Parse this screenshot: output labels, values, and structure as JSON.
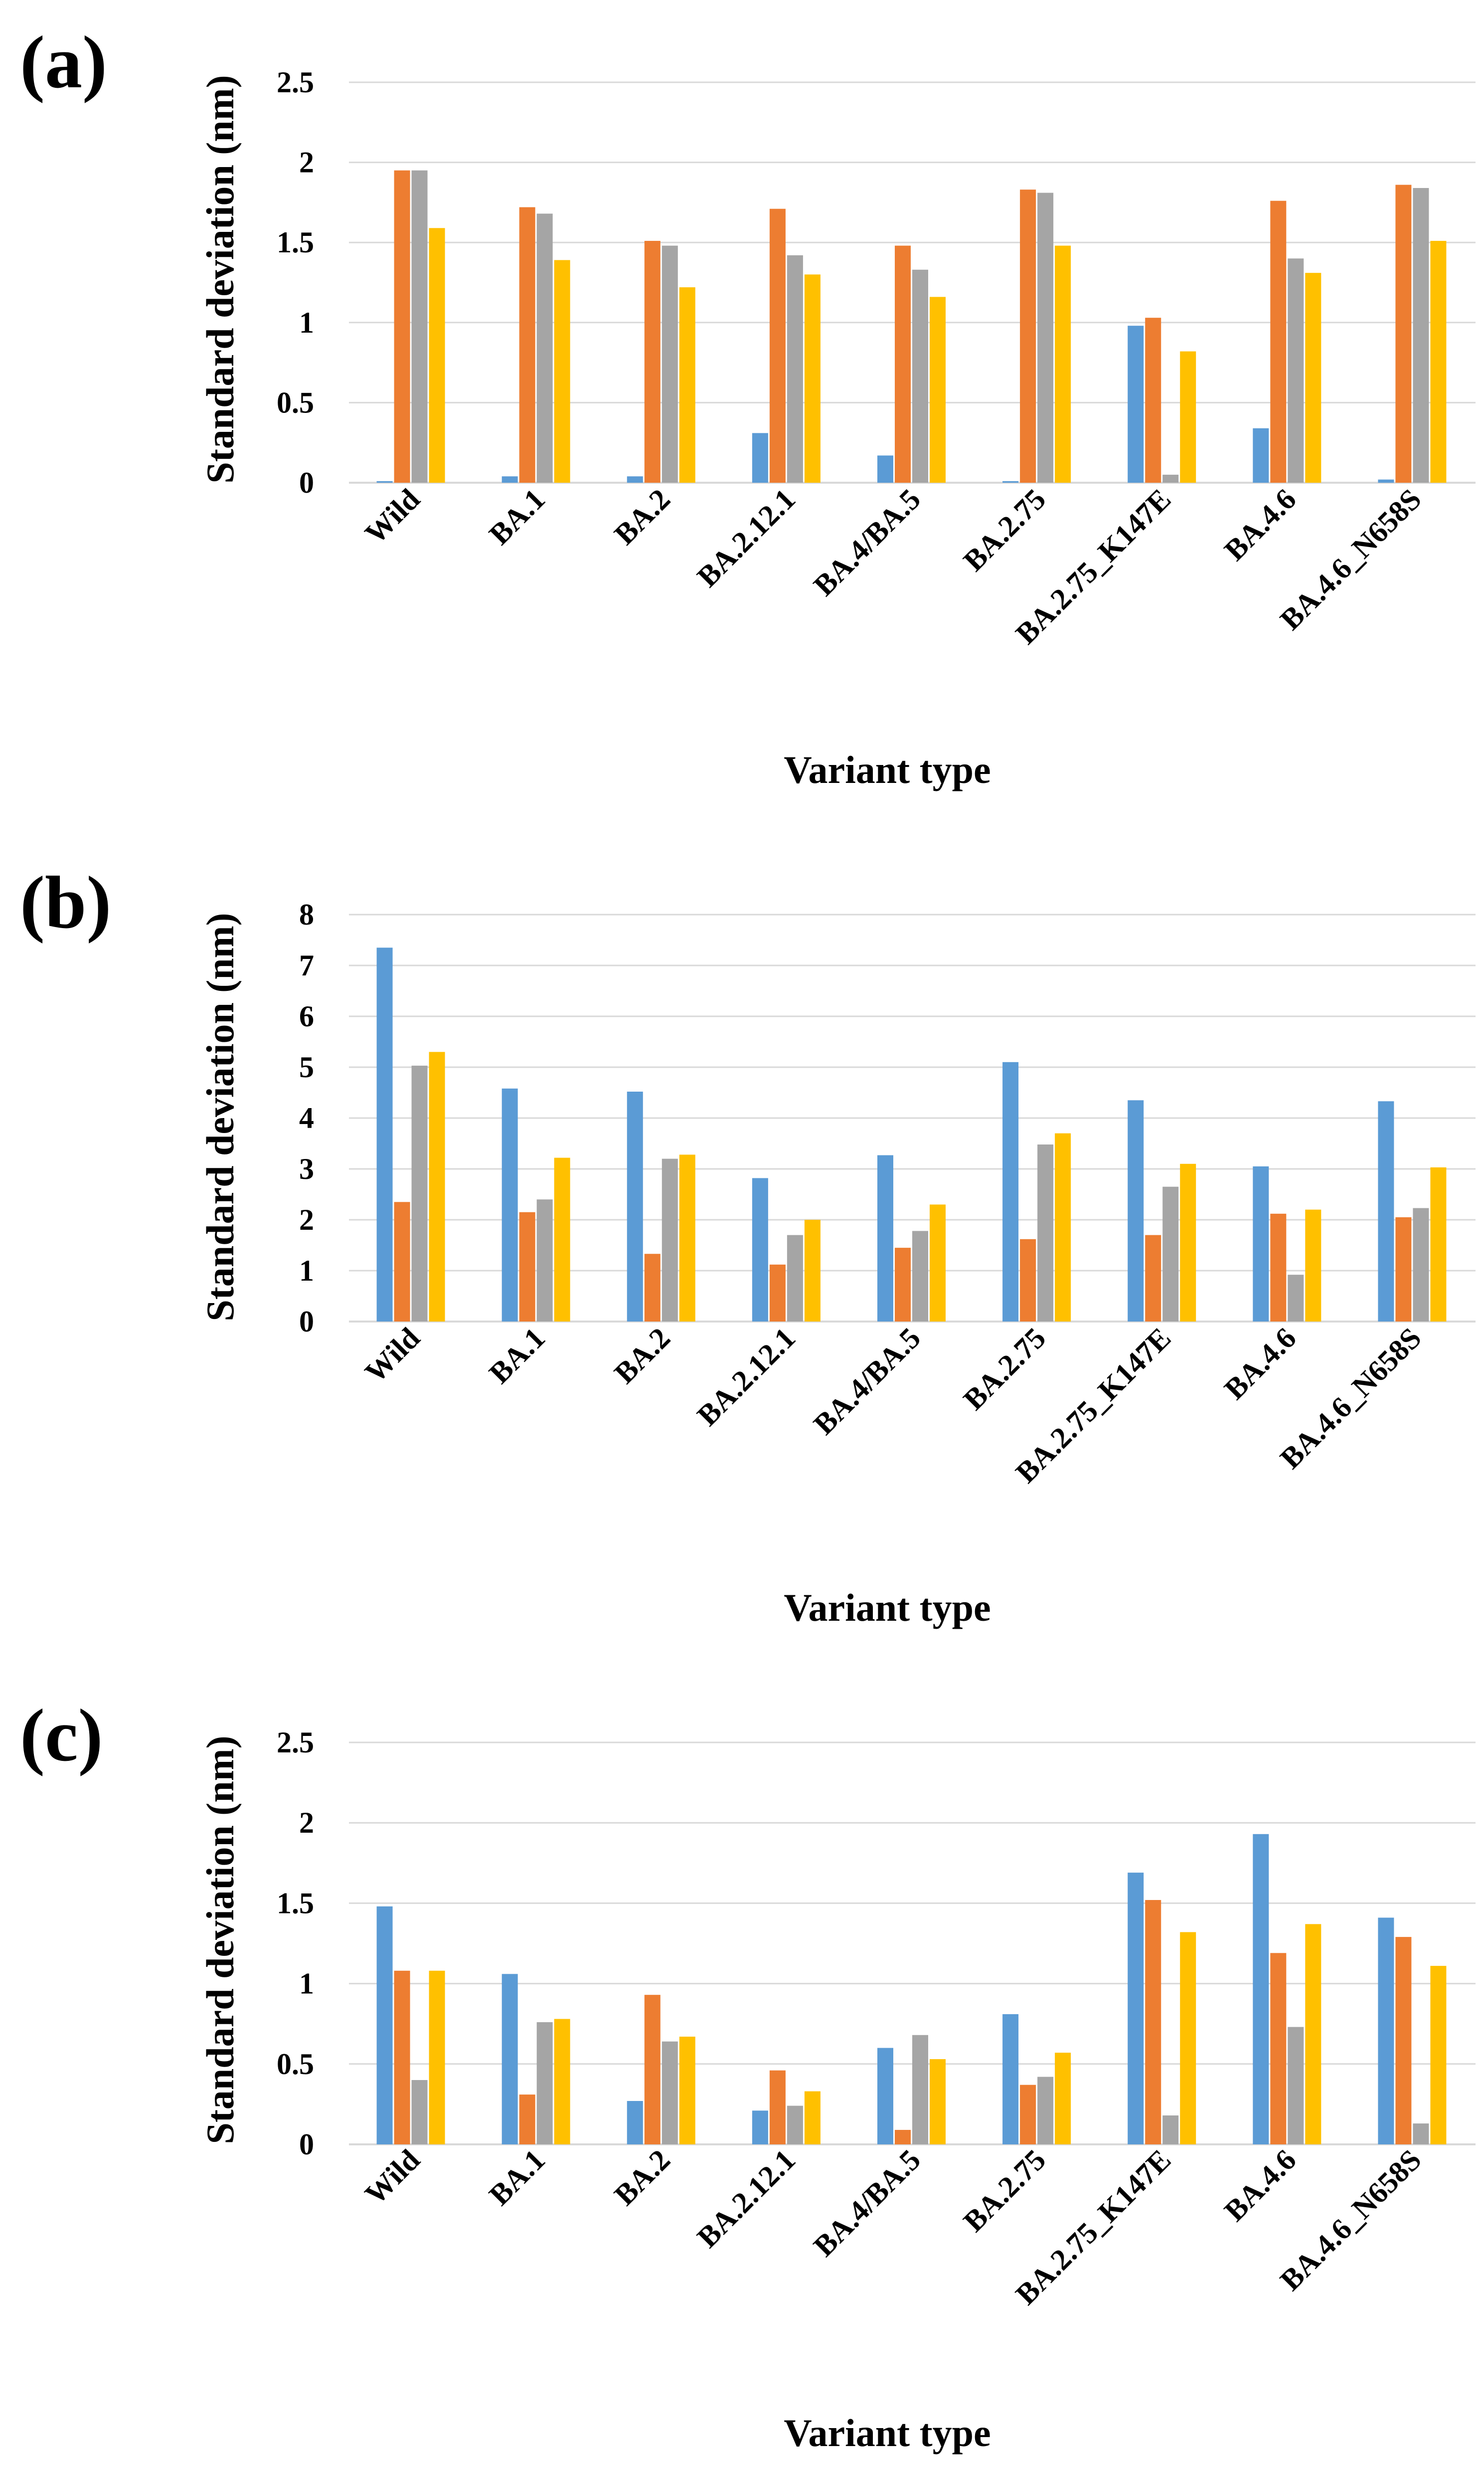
{
  "chart_data": [
    {
      "type": "bar",
      "panel_label": "(a)",
      "ylabel": "Standard deviation (nm)",
      "xlabel": "Variant type",
      "ylim": [
        0,
        2.5
      ],
      "yticks": [
        "0",
        "0.5",
        "1",
        "1.5",
        "2",
        "2.5"
      ],
      "categories": [
        "Wild",
        "BA.1",
        "BA.2",
        "BA.2.12.1",
        "BA.4/BA.5",
        "BA.2.75",
        "BA.2.75_K147E",
        "BA.4.6",
        "BA.4.6_N658S"
      ],
      "series": [
        {
          "color": "#5B9BD5",
          "values": [
            0.01,
            0.04,
            0.04,
            0.31,
            0.17,
            0.01,
            0.98,
            0.34,
            0.02
          ]
        },
        {
          "color": "#ED7D31",
          "values": [
            1.95,
            1.72,
            1.51,
            1.71,
            1.48,
            1.83,
            1.03,
            1.76,
            1.86
          ]
        },
        {
          "color": "#A5A5A5",
          "values": [
            1.95,
            1.68,
            1.48,
            1.42,
            1.33,
            1.81,
            0.05,
            1.4,
            1.84
          ]
        },
        {
          "color": "#FFC000",
          "values": [
            1.59,
            1.39,
            1.22,
            1.3,
            1.16,
            1.48,
            0.82,
            1.31,
            1.51
          ]
        }
      ]
    },
    {
      "type": "bar",
      "panel_label": "(b)",
      "ylabel": "Standard deviation (nm)",
      "xlabel": "Variant type",
      "ylim": [
        0,
        8
      ],
      "yticks": [
        "0",
        "1",
        "2",
        "3",
        "4",
        "5",
        "6",
        "7",
        "8"
      ],
      "categories": [
        "Wild",
        "BA.1",
        "BA.2",
        "BA.2.12.1",
        "BA.4/BA.5",
        "BA.2.75",
        "BA.2.75_K147E",
        "BA.4.6",
        "BA.4.6_N658S"
      ],
      "series": [
        {
          "color": "#5B9BD5",
          "values": [
            7.35,
            4.58,
            4.52,
            2.82,
            3.27,
            5.1,
            4.35,
            3.05,
            4.33
          ]
        },
        {
          "color": "#ED7D31",
          "values": [
            2.35,
            2.15,
            1.33,
            1.12,
            1.45,
            1.62,
            1.7,
            2.12,
            2.05
          ]
        },
        {
          "color": "#A5A5A5",
          "values": [
            5.03,
            2.4,
            3.2,
            1.7,
            1.78,
            3.48,
            2.65,
            0.92,
            2.23
          ]
        },
        {
          "color": "#FFC000",
          "values": [
            5.3,
            3.22,
            3.28,
            2.0,
            2.3,
            3.7,
            3.1,
            2.2,
            3.03
          ]
        }
      ]
    },
    {
      "type": "bar",
      "panel_label": "(c)",
      "ylabel": "Standard deviation (nm)",
      "xlabel": "Variant type",
      "ylim": [
        0,
        2.5
      ],
      "yticks": [
        "0",
        "0.5",
        "1",
        "1.5",
        "2",
        "2.5"
      ],
      "categories": [
        "Wild",
        "BA.1",
        "BA.2",
        "BA.2.12.1",
        "BA.4/BA.5",
        "BA.2.75",
        "BA.2.75_K147E",
        "BA.4.6",
        "BA.4.6_N658S"
      ],
      "series": [
        {
          "color": "#5B9BD5",
          "values": [
            1.48,
            1.06,
            0.27,
            0.21,
            0.6,
            0.81,
            1.69,
            1.93,
            1.41
          ]
        },
        {
          "color": "#ED7D31",
          "values": [
            1.08,
            0.31,
            0.93,
            0.46,
            0.09,
            0.37,
            1.52,
            1.19,
            1.29
          ]
        },
        {
          "color": "#A5A5A5",
          "values": [
            0.4,
            0.76,
            0.64,
            0.24,
            0.68,
            0.42,
            0.18,
            0.73,
            0.13
          ]
        },
        {
          "color": "#FFC000",
          "values": [
            1.08,
            0.78,
            0.67,
            0.33,
            0.53,
            0.57,
            1.32,
            1.37,
            1.11
          ]
        }
      ]
    }
  ]
}
